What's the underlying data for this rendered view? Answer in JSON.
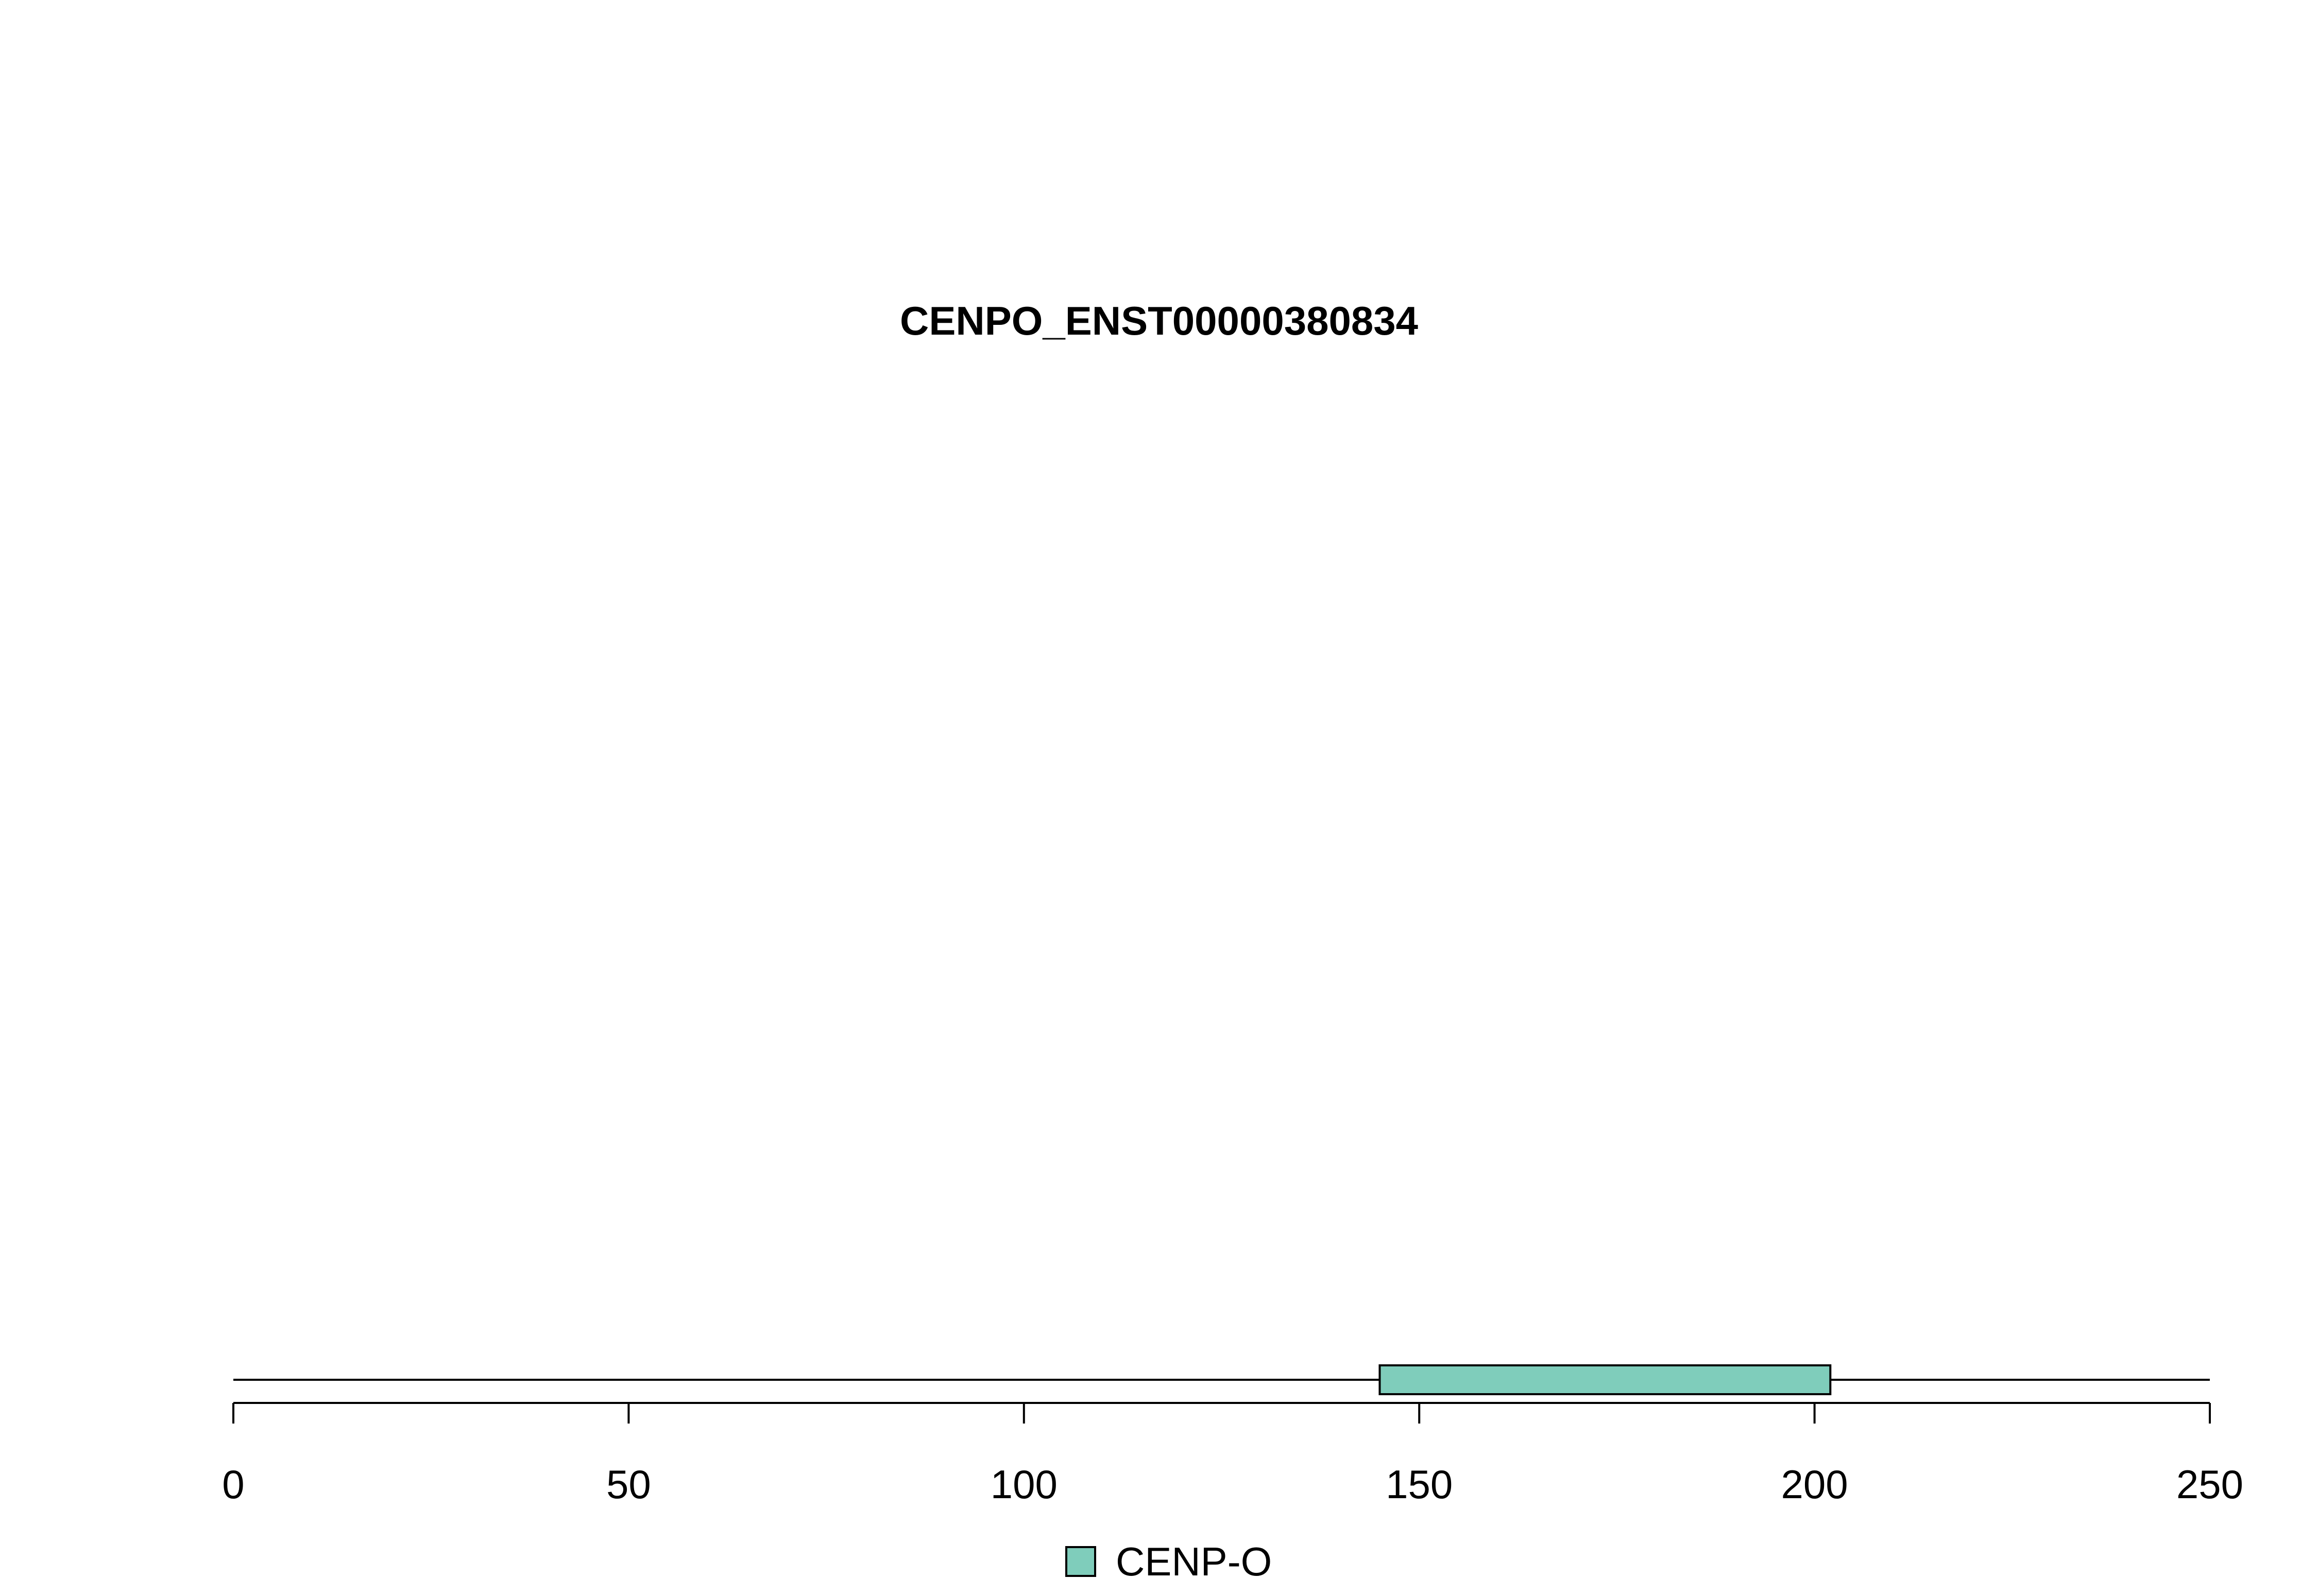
{
  "chart_data": {
    "type": "bar",
    "title": "CENPO_ENST00000380834",
    "protein_length": 250,
    "xlim": [
      0,
      250
    ],
    "xticks": [
      0,
      50,
      100,
      150,
      200,
      250
    ],
    "xtick_labels": [
      "0",
      "50",
      "100",
      "150",
      "200",
      "250"
    ],
    "xlabel": "",
    "ylabel": "",
    "grid": false,
    "legend_position": "bottom-center",
    "domains": [
      {
        "name": "CENP-O",
        "start": 145,
        "end": 202,
        "color": "#7fcdbb"
      }
    ]
  }
}
